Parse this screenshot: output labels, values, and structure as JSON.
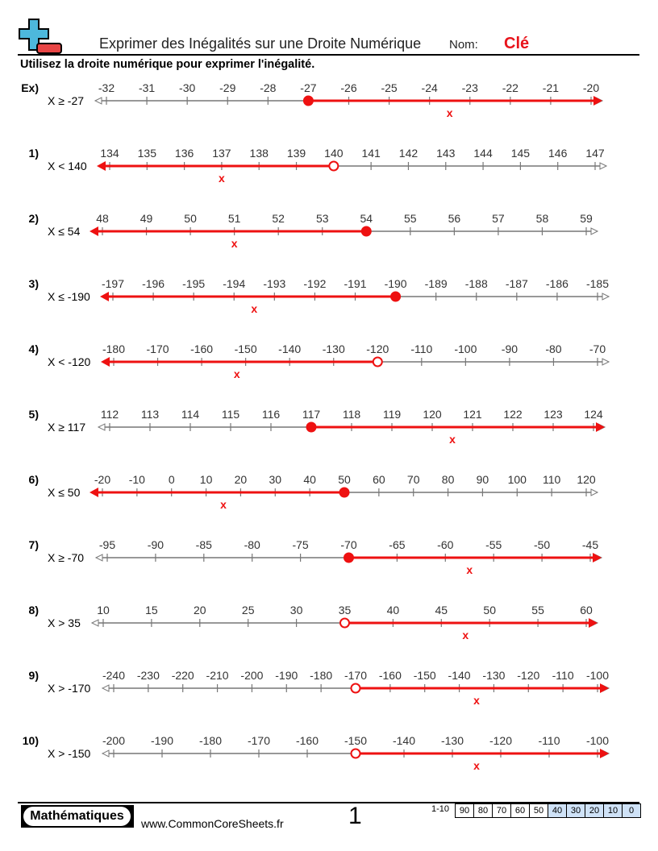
{
  "header": {
    "title": "Exprimer des Inégalités sur une Droite Numérique",
    "name_label": "Nom:",
    "name_value": "Clé",
    "instructions": "Utilisez la droite numérique pour exprimer l'inégalité."
  },
  "colors": {
    "answer": "#ee1111",
    "line": "#777777",
    "logo_blue": "#4db8dc",
    "logo_red": "#e84545"
  },
  "problems": [
    {
      "label": "Ex)",
      "inequality": "X ≥ -27",
      "ticks": [
        -32,
        -31,
        -30,
        -29,
        -28,
        -27,
        -26,
        -25,
        -24,
        -23,
        -22,
        -21,
        -20
      ],
      "point": -27,
      "closed": true,
      "direction": "right",
      "mark": "x",
      "mark_value": -23.5
    },
    {
      "label": "1)",
      "inequality": "X < 140",
      "ticks": [
        134,
        135,
        136,
        137,
        138,
        139,
        140,
        141,
        142,
        143,
        144,
        145,
        146,
        147
      ],
      "point": 140,
      "closed": false,
      "direction": "left",
      "mark": "x",
      "mark_value": 137
    },
    {
      "label": "2)",
      "inequality": "X ≤ 54",
      "ticks": [
        48,
        49,
        50,
        51,
        52,
        53,
        54,
        55,
        56,
        57,
        58,
        59
      ],
      "point": 54,
      "closed": true,
      "direction": "left",
      "mark": "x",
      "mark_value": 51
    },
    {
      "label": "3)",
      "inequality": "X ≤ -190",
      "ticks": [
        -197,
        -196,
        -195,
        -194,
        -193,
        -192,
        -191,
        -190,
        -189,
        -188,
        -187,
        -186,
        -185
      ],
      "point": -190,
      "closed": true,
      "direction": "left",
      "mark": "x",
      "mark_value": -193.5
    },
    {
      "label": "4)",
      "inequality": "X < -120",
      "ticks": [
        -180,
        -170,
        -160,
        -150,
        -140,
        -130,
        -120,
        -110,
        -100,
        -90,
        -80,
        -70
      ],
      "point": -120,
      "closed": false,
      "direction": "left",
      "mark": "x",
      "mark_value": -152
    },
    {
      "label": "5)",
      "inequality": "X ≥ 117",
      "ticks": [
        112,
        113,
        114,
        115,
        116,
        117,
        118,
        119,
        120,
        121,
        122,
        123,
        124
      ],
      "point": 117,
      "closed": true,
      "direction": "right",
      "mark": "x",
      "mark_value": 120.5
    },
    {
      "label": "6)",
      "inequality": "X ≤ 50",
      "ticks": [
        -20,
        -10,
        0,
        10,
        20,
        30,
        40,
        50,
        60,
        70,
        80,
        90,
        100,
        110,
        120
      ],
      "point": 50,
      "closed": true,
      "direction": "left",
      "mark": "x",
      "mark_value": 15
    },
    {
      "label": "7)",
      "inequality": "X ≥ -70",
      "ticks": [
        -95,
        -90,
        -85,
        -80,
        -75,
        -70,
        -65,
        -60,
        -55,
        -50,
        -45
      ],
      "point": -70,
      "closed": true,
      "direction": "right",
      "mark": "x",
      "mark_value": -57.5
    },
    {
      "label": "8)",
      "inequality": "X > 35",
      "ticks": [
        10,
        15,
        20,
        25,
        30,
        35,
        40,
        45,
        50,
        55,
        60
      ],
      "point": 35,
      "closed": false,
      "direction": "right",
      "mark": "x",
      "mark_value": 47.5
    },
    {
      "label": "9)",
      "inequality": "X > -170",
      "ticks": [
        -240,
        -230,
        -220,
        -210,
        -200,
        -190,
        -180,
        -170,
        -160,
        -150,
        -140,
        -130,
        -120,
        -110,
        -100
      ],
      "point": -170,
      "closed": false,
      "direction": "right",
      "mark": "x",
      "mark_value": -135
    },
    {
      "label": "10)",
      "inequality": "X > -150",
      "ticks": [
        -200,
        -190,
        -180,
        -170,
        -160,
        -150,
        -140,
        -130,
        -120,
        -110,
        -100
      ],
      "point": -150,
      "closed": false,
      "direction": "right",
      "mark": "x",
      "mark_value": -125
    }
  ],
  "footer": {
    "badge": "Mathématiques",
    "url": "www.CommonCoreSheets.fr",
    "page": "1",
    "range": "1-10",
    "scores": [
      "90",
      "80",
      "70",
      "60",
      "50",
      "40",
      "30",
      "20",
      "10",
      "0"
    ]
  }
}
